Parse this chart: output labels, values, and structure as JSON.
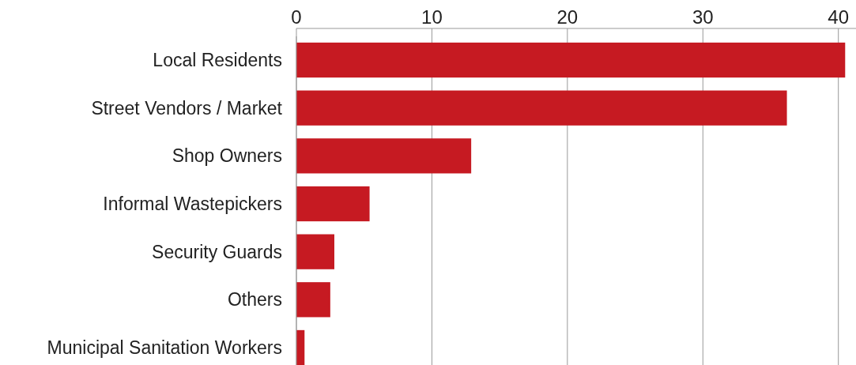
{
  "chart_data": {
    "type": "bar",
    "orientation": "horizontal",
    "categories": [
      "Local Residents",
      "Street Vendors / Market",
      "Shop Owners",
      "Informal Wastepickers",
      "Security Guards",
      "Others",
      "Municipal Sanitation Workers"
    ],
    "values": [
      40.5,
      36.2,
      12.9,
      5.4,
      2.8,
      2.5,
      0.6
    ],
    "color": "#c61a22",
    "xlim": [
      0,
      41.3
    ],
    "xticks": [
      0,
      10,
      20,
      30,
      40
    ],
    "grid": "x"
  }
}
